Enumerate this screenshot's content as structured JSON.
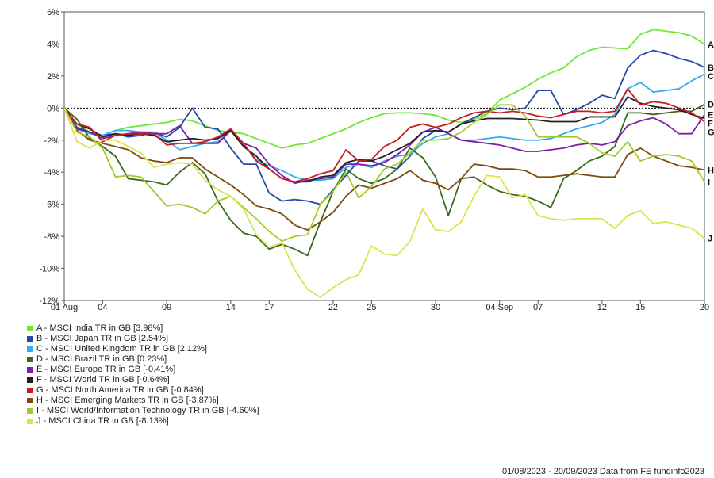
{
  "chart_data": {
    "type": "line",
    "x_ticks": [
      "01 Aug",
      "04",
      "09",
      "14",
      "17",
      "22",
      "25",
      "30",
      "04 Sep",
      "07",
      "12",
      "15",
      "20"
    ],
    "x_tick_positions": [
      0,
      3,
      8,
      13,
      16,
      21,
      24,
      29,
      34,
      37,
      42,
      45,
      50
    ],
    "ylim": [
      -12,
      6
    ],
    "y_ticks": [
      6,
      4,
      2,
      0,
      -2,
      -4,
      -6,
      -8,
      -10,
      -12
    ],
    "y_tick_labels": [
      "6%",
      "4%",
      "2%",
      "0%",
      "-2%",
      "-4%",
      "-6%",
      "-8%",
      "-10%",
      "-12%"
    ],
    "zero_line": true,
    "grid": false,
    "series": [
      {
        "letter": "A",
        "name": "A - MSCI India TR in GB [3.98%]",
        "color": "#6ee832",
        "x": [
          0,
          1,
          2,
          3,
          4,
          5,
          6,
          7,
          8,
          9,
          10,
          11,
          12,
          13,
          14,
          15,
          16,
          17,
          18,
          19,
          20,
          21,
          22,
          23,
          24,
          25,
          26,
          27,
          28,
          29,
          30,
          31,
          32,
          33,
          34,
          35,
          36,
          37,
          38,
          39,
          40,
          41,
          42,
          43,
          44,
          45,
          46,
          47,
          48,
          49,
          50
        ],
        "values": [
          0,
          -1.0,
          -1.5,
          -1.7,
          -1.4,
          -1.2,
          -1.1,
          -1.0,
          -0.9,
          -0.7,
          -0.8,
          -1.1,
          -1.4,
          -1.5,
          -1.6,
          -1.9,
          -2.2,
          -2.5,
          -2.3,
          -2.2,
          -1.9,
          -1.6,
          -1.3,
          -0.9,
          -0.6,
          -0.35,
          -0.3,
          -0.3,
          -0.35,
          -0.45,
          -0.75,
          -0.9,
          -0.7,
          -0.35,
          0.5,
          0.9,
          1.3,
          1.8,
          2.2,
          2.5,
          3.2,
          3.6,
          3.8,
          3.75,
          3.7,
          4.6,
          4.9,
          4.8,
          4.7,
          4.5,
          3.98
        ]
      },
      {
        "letter": "B",
        "name": "B - MSCI Japan TR in GB [2.54%]",
        "color": "#2649a8",
        "x": [
          0,
          1,
          2,
          3,
          4,
          5,
          6,
          7,
          8,
          9,
          10,
          11,
          12,
          13,
          14,
          15,
          16,
          17,
          18,
          19,
          20,
          21,
          22,
          23,
          24,
          25,
          26,
          27,
          28,
          29,
          30,
          31,
          32,
          33,
          34,
          35,
          36,
          37,
          38,
          39,
          40,
          41,
          42,
          43,
          44,
          45,
          46,
          47,
          48,
          49,
          50
        ],
        "values": [
          0,
          -1.2,
          -1.5,
          -1.7,
          -1.6,
          -1.8,
          -1.7,
          -1.5,
          -1.8,
          -1.2,
          0.0,
          -1.2,
          -1.3,
          -2.5,
          -3.5,
          -3.5,
          -5.3,
          -5.8,
          -5.7,
          -5.8,
          -6.0,
          -5.1,
          -4.2,
          -3.3,
          -3.3,
          -3.6,
          -3.8,
          -3.0,
          -1.9,
          -1.4,
          -1.5,
          -1.0,
          -0.6,
          -0.2,
          0.0,
          -0.1,
          0.0,
          1.1,
          1.1,
          -0.4,
          -0.1,
          0.3,
          0.8,
          0.6,
          2.5,
          3.3,
          3.6,
          3.4,
          3.1,
          2.9,
          2.54
        ]
      },
      {
        "letter": "C",
        "name": "C - MSCI United Kingdom TR in GB [2.12%]",
        "color": "#34abf0",
        "x": [
          0,
          1,
          2,
          3,
          4,
          5,
          6,
          7,
          8,
          9,
          10,
          11,
          12,
          13,
          14,
          15,
          16,
          17,
          18,
          19,
          20,
          21,
          22,
          23,
          24,
          25,
          26,
          27,
          28,
          29,
          30,
          31,
          32,
          33,
          34,
          35,
          36,
          37,
          38,
          39,
          40,
          41,
          42,
          43,
          44,
          45,
          46,
          47,
          48,
          49,
          50
        ],
        "values": [
          0,
          -1.3,
          -1.6,
          -1.7,
          -1.4,
          -1.4,
          -1.5,
          -1.5,
          -2.0,
          -2.6,
          -2.4,
          -2.2,
          -2.1,
          -1.4,
          -2.3,
          -3.2,
          -3.6,
          -3.9,
          -4.3,
          -4.5,
          -4.5,
          -4.4,
          -3.7,
          -3.5,
          -3.7,
          -3.3,
          -3.0,
          -2.9,
          -2.2,
          -1.8,
          -1.6,
          -2.0,
          -2.0,
          -1.9,
          -1.8,
          -1.9,
          -2.0,
          -2.0,
          -1.9,
          -1.6,
          -1.3,
          -1.1,
          -0.9,
          -0.4,
          1.2,
          1.6,
          1.0,
          1.1,
          1.2,
          1.7,
          2.12
        ]
      },
      {
        "letter": "D",
        "name": "D - MSCI Brazil TR in GB [0.23%]",
        "color": "#376b1b",
        "x": [
          0,
          1,
          2,
          3,
          4,
          5,
          6,
          7,
          8,
          9,
          10,
          11,
          12,
          13,
          14,
          15,
          16,
          17,
          18,
          19,
          20,
          21,
          22,
          23,
          24,
          25,
          26,
          27,
          28,
          29,
          30,
          31,
          32,
          33,
          34,
          35,
          36,
          37,
          38,
          39,
          40,
          41,
          42,
          43,
          44,
          45,
          46,
          47,
          48,
          49,
          50
        ],
        "values": [
          0,
          -0.7,
          -1.9,
          -2.4,
          -3.0,
          -4.4,
          -4.5,
          -4.6,
          -4.8,
          -4.0,
          -3.4,
          -4.1,
          -5.8,
          -7.0,
          -7.8,
          -8.0,
          -8.8,
          -8.5,
          -8.8,
          -9.2,
          -7.1,
          -5.2,
          -3.8,
          -4.4,
          -4.7,
          -4.4,
          -3.8,
          -2.5,
          -3.1,
          -4.3,
          -6.7,
          -4.4,
          -4.3,
          -4.8,
          -5.2,
          -5.4,
          -5.5,
          -5.8,
          -6.2,
          -4.4,
          -3.9,
          -3.3,
          -3.0,
          -2.4,
          -0.3,
          -0.3,
          -0.4,
          -0.3,
          -0.2,
          -0.2,
          0.23
        ]
      },
      {
        "letter": "E",
        "name": "E - MSCI Europe TR in GB [-0.41%]",
        "color": "#7d1eab",
        "x": [
          0,
          1,
          2,
          3,
          4,
          5,
          6,
          7,
          8,
          9,
          10,
          11,
          12,
          13,
          14,
          15,
          16,
          17,
          18,
          19,
          20,
          21,
          22,
          23,
          24,
          25,
          26,
          27,
          28,
          29,
          30,
          31,
          32,
          33,
          34,
          35,
          36,
          37,
          38,
          39,
          40,
          41,
          42,
          43,
          44,
          45,
          46,
          47,
          48,
          49,
          50
        ],
        "values": [
          0,
          -1.3,
          -1.5,
          -1.9,
          -1.7,
          -1.6,
          -1.5,
          -1.6,
          -1.6,
          -1.1,
          -2.2,
          -2.2,
          -2.2,
          -1.4,
          -2.2,
          -2.5,
          -3.5,
          -4.2,
          -4.7,
          -4.5,
          -4.4,
          -4.3,
          -3.5,
          -3.5,
          -3.6,
          -3.4,
          -2.9,
          -2.3,
          -1.5,
          -1.2,
          -1.6,
          -2.0,
          -2.1,
          -2.2,
          -2.3,
          -2.5,
          -2.7,
          -2.7,
          -2.6,
          -2.5,
          -2.3,
          -2.2,
          -2.3,
          -2.1,
          -1.1,
          -0.8,
          -0.6,
          -1.0,
          -1.6,
          -1.6,
          -0.41
        ]
      },
      {
        "letter": "F",
        "name": "F - MSCI World TR in GB [-0.64%]",
        "color": "#222222",
        "x": [
          0,
          1,
          2,
          3,
          4,
          5,
          6,
          7,
          8,
          9,
          10,
          11,
          12,
          13,
          14,
          15,
          16,
          17,
          18,
          19,
          20,
          21,
          22,
          23,
          24,
          25,
          26,
          27,
          28,
          29,
          30,
          31,
          32,
          33,
          34,
          35,
          36,
          37,
          38,
          39,
          40,
          41,
          42,
          43,
          44,
          45,
          46,
          47,
          48,
          49,
          50
        ],
        "values": [
          0,
          -1.0,
          -1.3,
          -1.8,
          -1.6,
          -1.7,
          -1.6,
          -1.7,
          -2.1,
          -2.0,
          -1.9,
          -2.0,
          -1.9,
          -1.4,
          -2.4,
          -3.0,
          -3.8,
          -4.4,
          -4.6,
          -4.6,
          -4.3,
          -4.2,
          -3.4,
          -3.2,
          -3.3,
          -3.0,
          -2.6,
          -2.2,
          -1.5,
          -1.4,
          -1.5,
          -1.0,
          -0.8,
          -0.65,
          -0.65,
          -0.65,
          -0.7,
          -0.75,
          -0.85,
          -0.85,
          -0.85,
          -0.55,
          -0.55,
          -0.55,
          0.7,
          0.3,
          0.1,
          0.0,
          -0.1,
          -0.4,
          -0.64
        ]
      },
      {
        "letter": "G",
        "name": "G - MSCI North America TR in GB [-0.84%]",
        "color": "#c81e1e",
        "x": [
          0,
          1,
          2,
          3,
          4,
          5,
          6,
          7,
          8,
          9,
          10,
          11,
          12,
          13,
          14,
          15,
          16,
          17,
          18,
          19,
          20,
          21,
          22,
          23,
          24,
          25,
          26,
          27,
          28,
          29,
          30,
          31,
          32,
          33,
          34,
          35,
          36,
          37,
          38,
          39,
          40,
          41,
          42,
          43,
          44,
          45,
          46,
          47,
          48,
          49,
          50
        ],
        "values": [
          0,
          -1.0,
          -1.2,
          -2.1,
          -1.7,
          -1.6,
          -1.6,
          -1.6,
          -2.3,
          -2.2,
          -2.2,
          -2.1,
          -1.8,
          -1.3,
          -2.2,
          -3.3,
          -3.8,
          -4.4,
          -4.6,
          -4.4,
          -4.1,
          -3.9,
          -2.6,
          -3.3,
          -3.2,
          -2.4,
          -2.0,
          -1.2,
          -1.0,
          -1.2,
          -1.0,
          -0.6,
          -0.3,
          -0.2,
          -0.3,
          -0.2,
          -0.3,
          -0.5,
          -0.6,
          -0.4,
          -0.2,
          -0.2,
          -0.3,
          -0.2,
          1.2,
          0.2,
          0.4,
          0.3,
          0.0,
          -0.3,
          -0.84
        ]
      },
      {
        "letter": "H",
        "name": "H - MSCI Emerging Markets TR in GB [-3.87%]",
        "color": "#7b4a0e",
        "x": [
          0,
          1,
          2,
          3,
          4,
          5,
          6,
          7,
          8,
          9,
          10,
          11,
          12,
          13,
          14,
          15,
          16,
          17,
          18,
          19,
          20,
          21,
          22,
          23,
          24,
          25,
          26,
          27,
          28,
          29,
          30,
          31,
          32,
          33,
          34,
          35,
          36,
          37,
          38,
          39,
          40,
          41,
          42,
          43,
          44,
          45,
          46,
          47,
          48,
          49,
          50
        ],
        "values": [
          0,
          -1.4,
          -2.0,
          -2.2,
          -2.4,
          -2.6,
          -3.1,
          -3.3,
          -3.4,
          -3.1,
          -3.1,
          -3.8,
          -4.3,
          -4.8,
          -5.4,
          -6.1,
          -6.3,
          -6.6,
          -7.3,
          -7.6,
          -7.1,
          -6.5,
          -5.5,
          -4.8,
          -5.0,
          -4.7,
          -4.4,
          -3.9,
          -4.5,
          -4.7,
          -5.1,
          -4.4,
          -3.5,
          -3.6,
          -3.8,
          -3.8,
          -3.9,
          -4.3,
          -4.3,
          -4.2,
          -4.1,
          -4.2,
          -4.3,
          -4.3,
          -2.9,
          -2.5,
          -3.0,
          -3.3,
          -3.6,
          -3.7,
          -3.87
        ]
      },
      {
        "letter": "I",
        "name": "I - MSCI World/Information Technology TR in GB [-4.60%]",
        "color": "#a6c92d",
        "x": [
          0,
          1,
          2,
          3,
          4,
          5,
          6,
          7,
          8,
          9,
          10,
          11,
          12,
          13,
          14,
          15,
          16,
          17,
          18,
          19,
          20,
          21,
          22,
          23,
          24,
          25,
          26,
          27,
          28,
          29,
          30,
          31,
          32,
          33,
          34,
          35,
          36,
          37,
          38,
          39,
          40,
          41,
          42,
          43,
          44,
          45,
          46,
          47,
          48,
          49,
          50
        ],
        "values": [
          0,
          -1.5,
          -1.8,
          -2.5,
          -4.3,
          -4.2,
          -4.3,
          -5.2,
          -6.1,
          -6.0,
          -6.2,
          -6.6,
          -5.8,
          -5.5,
          -6.2,
          -6.9,
          -7.7,
          -8.3,
          -8.0,
          -7.9,
          -6.0,
          -5.2,
          -4.0,
          -5.6,
          -4.9,
          -3.8,
          -3.5,
          -2.8,
          -2.0,
          -2.0,
          -1.9,
          -1.5,
          -0.9,
          -0.4,
          0.2,
          0.2,
          -0.5,
          -1.8,
          -1.8,
          -1.8,
          -1.8,
          -2.2,
          -2.8,
          -3.0,
          -2.1,
          -3.3,
          -3.0,
          -2.9,
          -3.0,
          -3.3,
          -4.6
        ]
      },
      {
        "letter": "J",
        "name": "J - MSCI China TR in GB [-8.13%]",
        "color": "#dbe350",
        "x": [
          0,
          1,
          2,
          3,
          4,
          5,
          6,
          7,
          8,
          9,
          10,
          11,
          12,
          13,
          14,
          15,
          16,
          17,
          18,
          19,
          20,
          21,
          22,
          23,
          24,
          25,
          26,
          27,
          28,
          29,
          30,
          31,
          32,
          33,
          34,
          35,
          36,
          37,
          38,
          39,
          40,
          41,
          42,
          43,
          44,
          45,
          46,
          47,
          48,
          49,
          50
        ],
        "values": [
          0,
          -2.1,
          -2.5,
          -2.0,
          -2.0,
          -2.4,
          -2.8,
          -3.7,
          -3.5,
          -3.4,
          -3.5,
          -4.5,
          -5.1,
          -5.5,
          -6.3,
          -7.9,
          -8.7,
          -8.4,
          -10.1,
          -11.3,
          -11.8,
          -11.2,
          -10.7,
          -10.4,
          -8.6,
          -9.1,
          -9.2,
          -8.3,
          -6.3,
          -7.6,
          -7.7,
          -7.1,
          -5.5,
          -4.2,
          -4.3,
          -5.6,
          -5.4,
          -6.7,
          -6.9,
          -7.0,
          -6.9,
          -6.9,
          -6.9,
          -7.5,
          -6.7,
          -6.4,
          -7.2,
          -7.1,
          -7.3,
          -7.5,
          -8.13
        ]
      }
    ]
  },
  "footer": {
    "date_range": "01/08/2023 - 20/09/2023 Data from FE fundinfo2023"
  }
}
